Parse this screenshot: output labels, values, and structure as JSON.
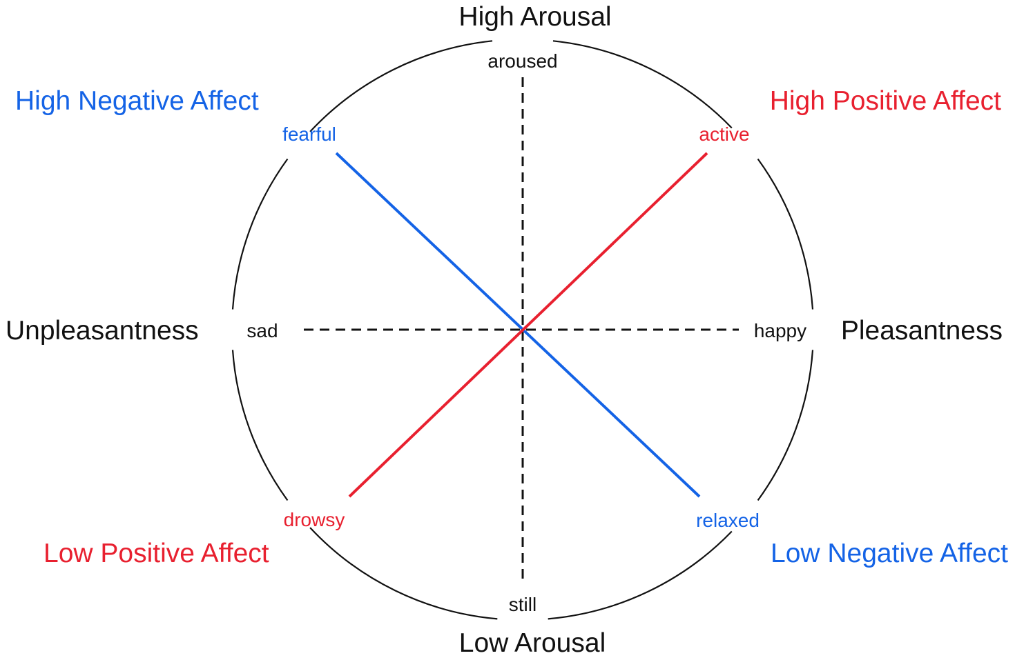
{
  "colors": {
    "positive": "#e8202f",
    "negative": "#1463e6",
    "neutral": "#111111"
  },
  "axes": {
    "top": "High Arousal",
    "bottom": "Low Arousal",
    "left": "Unpleasantness",
    "right": "Pleasantness"
  },
  "quadrants": {
    "top_left": "High Negative Affect",
    "top_right": "High Positive Affect",
    "bottom_left": "Low Positive Affect",
    "bottom_right": "Low Negative Affect"
  },
  "words": {
    "top": "aroused",
    "bottom": "still",
    "left": "sad",
    "right": "happy",
    "top_left": "fearful",
    "top_right": "active",
    "bottom_left": "drowsy",
    "bottom_right": "relaxed"
  }
}
